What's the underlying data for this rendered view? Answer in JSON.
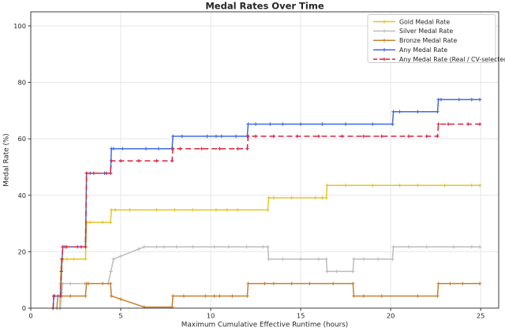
{
  "chart_data": {
    "type": "line",
    "title": "Medal Rates Over Time",
    "xlabel": "Maximum Cumulative Effective Runtime (hours)",
    "ylabel": "Medal Rate (%)",
    "xlim": [
      0,
      26
    ],
    "ylim": [
      0,
      105
    ],
    "xticks": [
      0,
      5,
      10,
      15,
      20,
      25
    ],
    "yticks": [
      0,
      20,
      40,
      60,
      80,
      100
    ],
    "grid": true,
    "legend_position": "upper right",
    "series": [
      {
        "name": "Gold Medal Rate",
        "color": "#e7c32a",
        "dash": "none",
        "points": [
          [
            1.6,
            0
          ],
          [
            1.65,
            8.7
          ],
          [
            1.7,
            17.4
          ],
          [
            3.04,
            17.4
          ],
          [
            3.1,
            30.4
          ],
          [
            4.43,
            30.4
          ],
          [
            4.48,
            34.8
          ],
          [
            13.17,
            34.8
          ],
          [
            13.22,
            39.1
          ],
          [
            16.42,
            39.1
          ],
          [
            16.47,
            43.5
          ],
          [
            24.95,
            43.5
          ]
        ],
        "marker_xs": [
          1.65,
          2.0,
          2.4,
          3.3,
          4.0,
          4.7,
          5.5,
          7.0,
          8.0,
          9.0,
          10.3,
          10.9,
          11.5,
          13.5,
          14.5,
          15.8,
          16.2,
          17.5,
          19.0,
          20.5,
          21.5,
          23.0,
          24.5
        ]
      },
      {
        "name": "Silver Medal Rate",
        "color": "#bdbdbd",
        "dash": "none",
        "points": [
          [
            1.65,
            0
          ],
          [
            1.7,
            4.3
          ],
          [
            1.78,
            8.7
          ],
          [
            4.3,
            8.7
          ],
          [
            4.45,
            13.0
          ],
          [
            4.6,
            17.4
          ],
          [
            6.3,
            21.7
          ],
          [
            13.17,
            21.7
          ],
          [
            13.22,
            17.4
          ],
          [
            16.42,
            17.4
          ],
          [
            16.47,
            13.0
          ],
          [
            17.9,
            13.0
          ],
          [
            17.95,
            17.4
          ],
          [
            20.1,
            17.4
          ],
          [
            20.15,
            21.7
          ],
          [
            24.95,
            21.7
          ]
        ],
        "marker_xs": [
          1.72,
          2.2,
          3.0,
          4.45,
          5.0,
          6.0,
          7.0,
          7.4,
          8.1,
          9.0,
          10.2,
          11.0,
          12.0,
          12.9,
          14.0,
          15.0,
          16.0,
          17.0,
          18.5,
          19.3,
          21.0,
          22.0,
          23.5,
          24.5
        ]
      },
      {
        "name": "Bronze Medal Rate",
        "color": "#c8802f",
        "dash": "none",
        "points": [
          [
            1.45,
            0
          ],
          [
            1.5,
            4.3
          ],
          [
            3.04,
            4.3
          ],
          [
            3.1,
            8.7
          ],
          [
            4.43,
            8.7
          ],
          [
            4.48,
            4.3
          ],
          [
            6.3,
            0.4
          ],
          [
            7.85,
            0.4
          ],
          [
            7.9,
            4.3
          ],
          [
            12.03,
            4.3
          ],
          [
            12.08,
            8.7
          ],
          [
            17.9,
            8.7
          ],
          [
            17.95,
            4.3
          ],
          [
            22.6,
            4.3
          ],
          [
            22.65,
            8.7
          ],
          [
            24.95,
            8.7
          ]
        ],
        "marker_xs": [
          1.5,
          2.2,
          3.2,
          4.0,
          5.0,
          8.5,
          9.7,
          10.2,
          10.5,
          11.2,
          13.0,
          13.5,
          14.5,
          15.5,
          16.8,
          18.5,
          19.5,
          21.5,
          23.3,
          24.0
        ]
      },
      {
        "name": "Any Medal Rate",
        "color": "#4169e1",
        "dash": "none",
        "points": [
          [
            1.24,
            0
          ],
          [
            1.28,
            4.3
          ],
          [
            1.66,
            4.3
          ],
          [
            1.7,
            13.0
          ],
          [
            1.74,
            17.4
          ],
          [
            1.78,
            21.7
          ],
          [
            3.04,
            21.7
          ],
          [
            3.1,
            47.8
          ],
          [
            4.43,
            47.8
          ],
          [
            4.48,
            56.5
          ],
          [
            7.85,
            56.5
          ],
          [
            7.9,
            60.9
          ],
          [
            12.03,
            60.9
          ],
          [
            12.08,
            65.2
          ],
          [
            20.1,
            65.2
          ],
          [
            20.15,
            69.6
          ],
          [
            22.6,
            69.6
          ],
          [
            22.65,
            73.9
          ],
          [
            24.95,
            73.9
          ]
        ],
        "marker_xs": [
          1.3,
          1.9,
          2.6,
          3.3,
          4.1,
          4.6,
          5.1,
          6.4,
          7.1,
          8.4,
          9.8,
          10.3,
          10.6,
          11.4,
          12.5,
          13.3,
          14.0,
          15.0,
          16.2,
          17.5,
          19.0,
          20.5,
          21.5,
          22.8,
          23.8,
          24.5
        ]
      },
      {
        "name": "Any Medal Rate (Real / CV-selected)",
        "color": "#d2243f",
        "dash": "7 4",
        "points": [
          [
            1.24,
            0
          ],
          [
            1.28,
            4.3
          ],
          [
            1.66,
            4.3
          ],
          [
            1.7,
            13.0
          ],
          [
            1.74,
            17.4
          ],
          [
            1.78,
            21.7
          ],
          [
            3.04,
            21.7
          ],
          [
            3.1,
            47.8
          ],
          [
            4.43,
            47.8
          ],
          [
            4.48,
            52.2
          ],
          [
            7.85,
            52.2
          ],
          [
            7.9,
            56.5
          ],
          [
            12.03,
            56.5
          ],
          [
            12.08,
            60.9
          ],
          [
            22.6,
            60.9
          ],
          [
            22.65,
            65.2
          ],
          [
            24.95,
            65.2
          ]
        ],
        "marker_xs": [
          1.3,
          2.0,
          2.8,
          3.5,
          4.2,
          5.0,
          6.0,
          7.0,
          8.3,
          9.5,
          10.5,
          11.5,
          12.5,
          13.5,
          14.8,
          16.0,
          17.3,
          18.5,
          19.5,
          21.0,
          22.0,
          23.2,
          24.3
        ]
      }
    ]
  }
}
